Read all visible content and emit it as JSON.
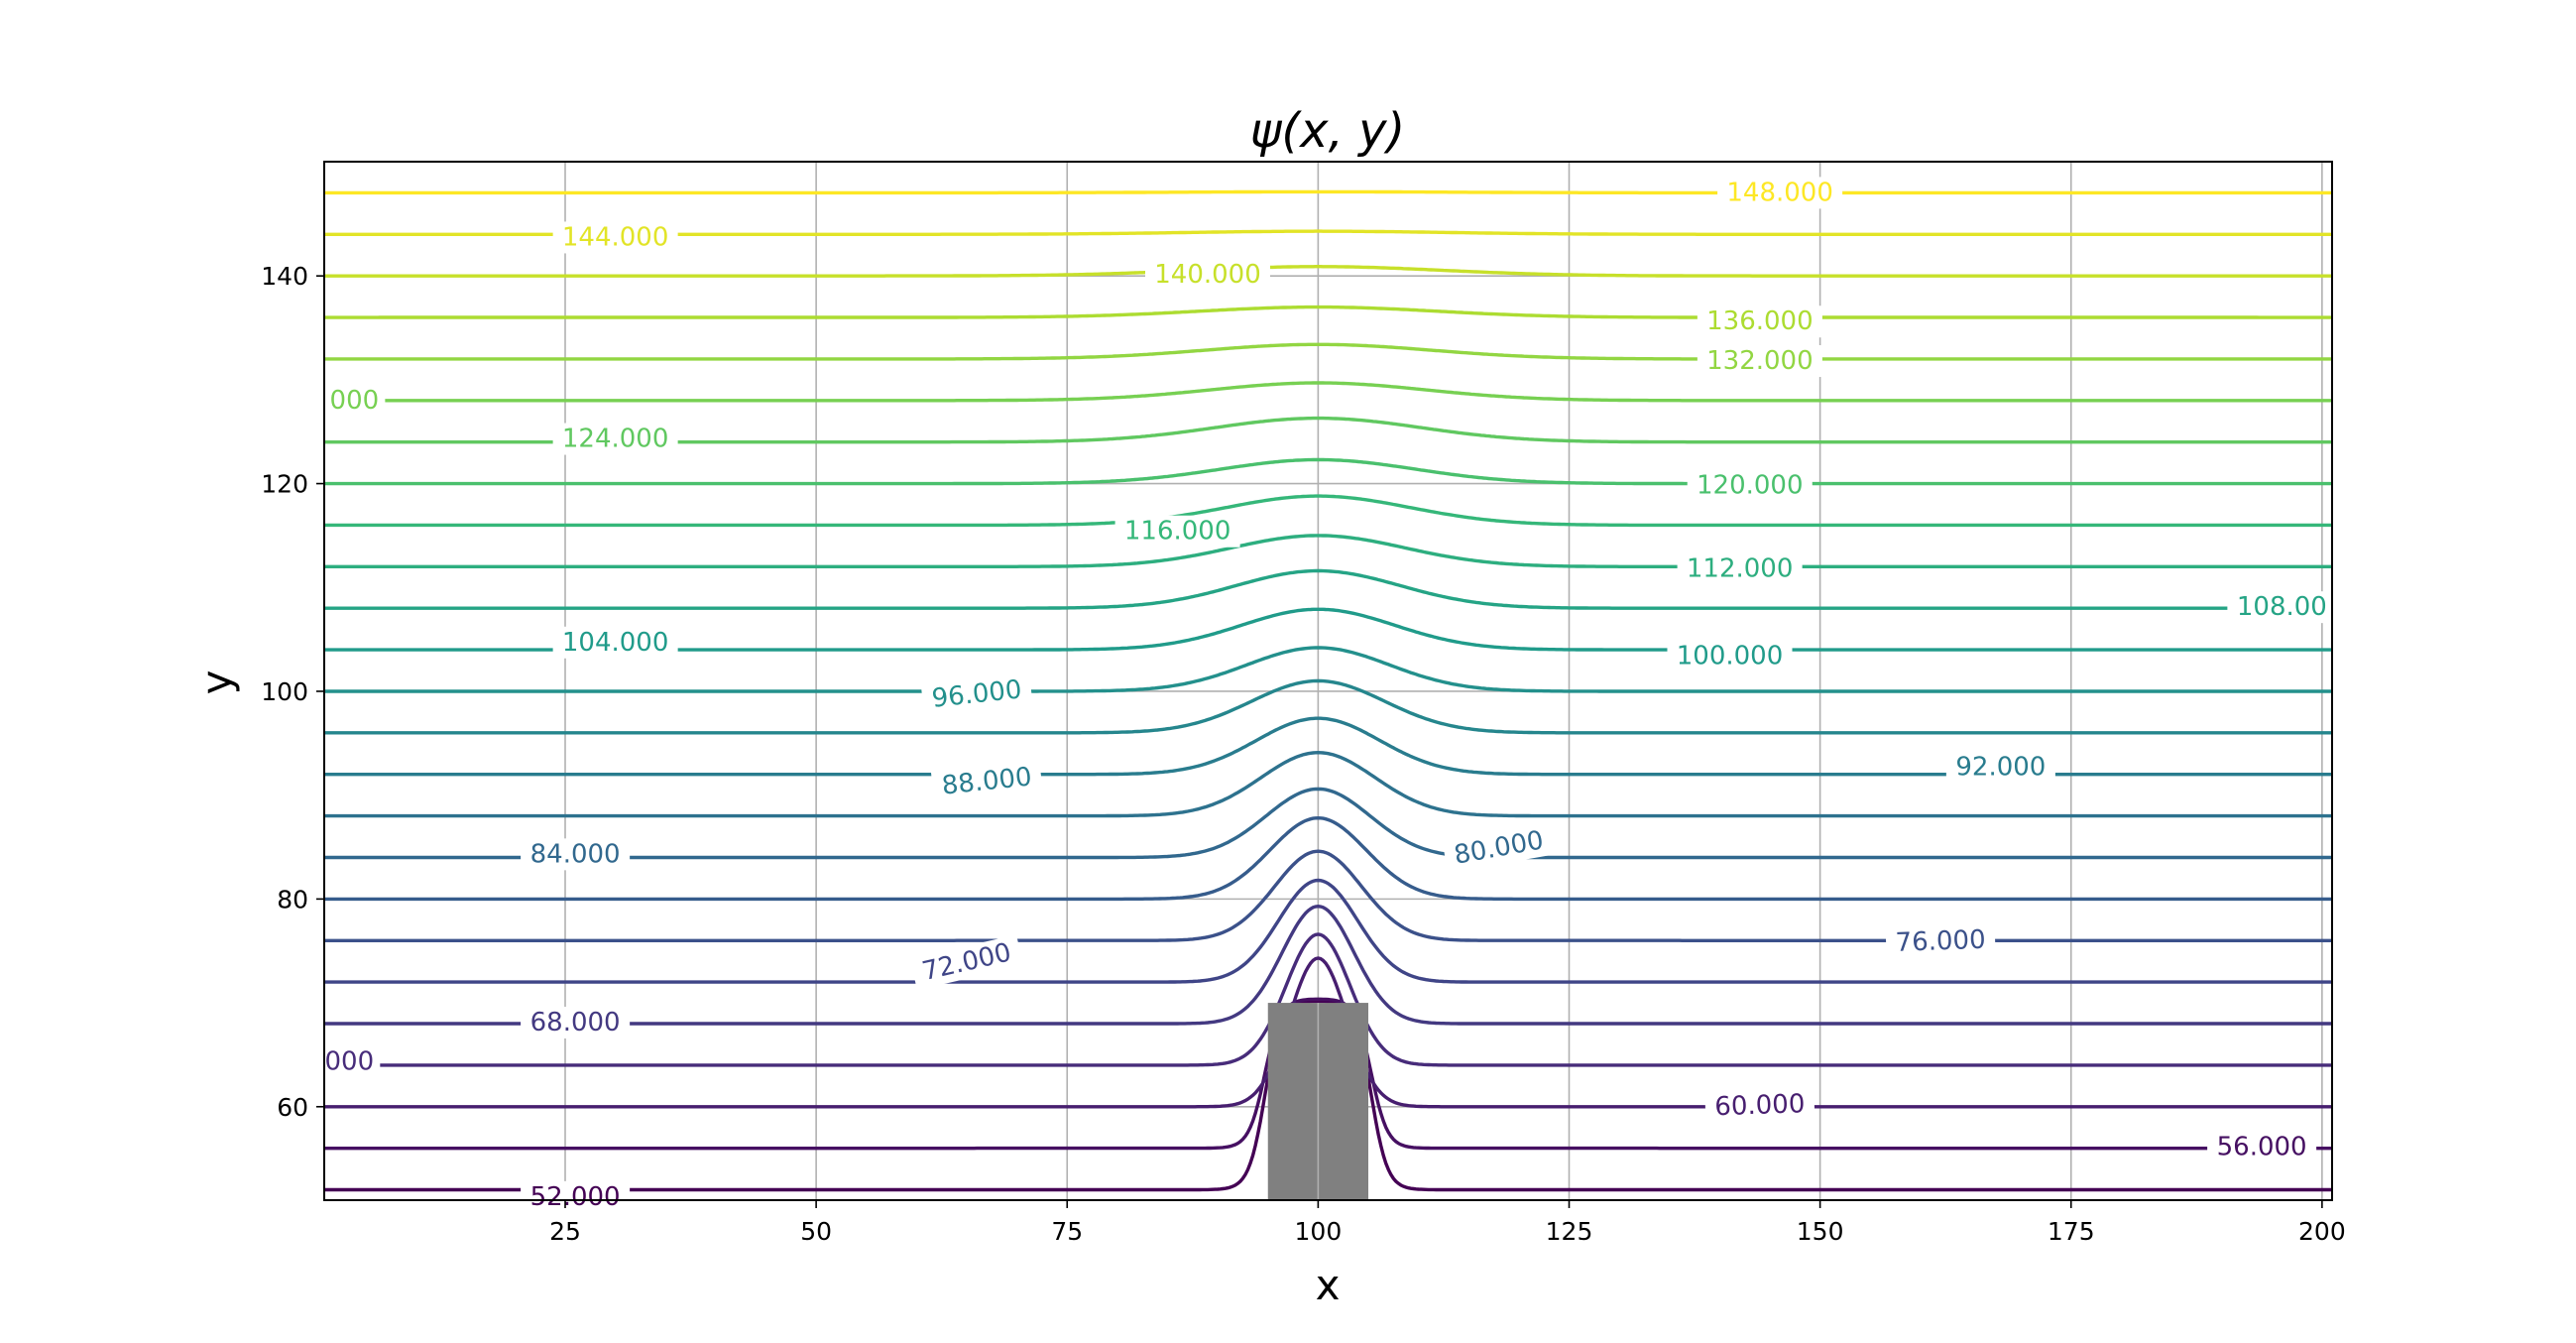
{
  "chart_data": {
    "type": "contour",
    "title": "ψ(x, y)",
    "xlabel": "x",
    "ylabel": "y",
    "xlim": [
      1,
      201
    ],
    "ylim": [
      51,
      151
    ],
    "x_ticks": [
      25,
      50,
      75,
      100,
      125,
      150,
      175,
      200
    ],
    "y_ticks": [
      60,
      80,
      100,
      120,
      140
    ],
    "grid": true,
    "colormap": "viridis",
    "obstacle": {
      "x_min": 95,
      "x_max": 105,
      "y_max": 70,
      "color": "#808080"
    },
    "levels": [
      52,
      56,
      60,
      64,
      68,
      72,
      76,
      80,
      84,
      88,
      92,
      96,
      100,
      104,
      108,
      112,
      116,
      120,
      124,
      128,
      132,
      136,
      140,
      144,
      148
    ],
    "inlet_y": [
      52,
      56,
      60,
      64,
      68,
      72,
      76,
      80,
      84,
      88,
      92,
      96,
      100,
      104,
      108,
      112,
      116,
      120,
      124,
      128,
      132,
      136,
      140,
      144,
      148
    ],
    "peak_y": [
      70.2,
      70.4,
      74.3,
      76.6,
      79.3,
      81.8,
      84.6,
      87.8,
      90.6,
      94.1,
      97.4,
      101.0,
      104.2,
      107.9,
      111.6,
      115.0,
      118.8,
      122.3,
      126.3,
      129.7,
      133.4,
      137.0,
      140.9,
      144.3,
      148.1
    ],
    "contour_labels": [
      {
        "text": "52.000",
        "x": 26,
        "y": 51.3,
        "angle": 0
      },
      {
        "text": "56.000",
        "x": 194,
        "y": 56.1,
        "angle": 0
      },
      {
        "text": "60.000",
        "x": 144,
        "y": 60.1,
        "angle": -2
      },
      {
        "text": "000",
        "x": 3.5,
        "y": 64.3,
        "angle": 0
      },
      {
        "text": "68.000",
        "x": 26,
        "y": 68.1,
        "angle": 0
      },
      {
        "text": "72.000",
        "x": 65,
        "y": 73.9,
        "angle": -13
      },
      {
        "text": "76.000",
        "x": 162,
        "y": 75.9,
        "angle": -2
      },
      {
        "text": "80.000",
        "x": 118,
        "y": 84.9,
        "angle": -10
      },
      {
        "text": "84.000",
        "x": 26,
        "y": 84.3,
        "angle": 0
      },
      {
        "text": "88.000",
        "x": 67,
        "y": 91.3,
        "angle": -6
      },
      {
        "text": "92.000",
        "x": 168,
        "y": 92.7,
        "angle": 0
      },
      {
        "text": "96.000",
        "x": 66,
        "y": 99.7,
        "angle": -6
      },
      {
        "text": "100.000",
        "x": 141,
        "y": 103.4,
        "angle": 0
      },
      {
        "text": "104.000",
        "x": 30,
        "y": 104.7,
        "angle": 0
      },
      {
        "text": "108.00",
        "x": 196,
        "y": 108.1,
        "angle": 0
      },
      {
        "text": "112.000",
        "x": 142,
        "y": 111.8,
        "angle": 0
      },
      {
        "text": "116.000",
        "x": 86,
        "y": 115.4,
        "angle": 0
      },
      {
        "text": "120.000",
        "x": 143,
        "y": 119.8,
        "angle": 0
      },
      {
        "text": "124.000",
        "x": 30,
        "y": 124.3,
        "angle": 0
      },
      {
        "text": "000",
        "x": 4,
        "y": 128.0,
        "angle": 0
      },
      {
        "text": "132.000",
        "x": 144,
        "y": 131.8,
        "angle": 0
      },
      {
        "text": "136.000",
        "x": 144,
        "y": 135.6,
        "angle": 0
      },
      {
        "text": "140.000",
        "x": 89,
        "y": 140.1,
        "angle": 0
      },
      {
        "text": "144.000",
        "x": 30,
        "y": 143.7,
        "angle": 0
      },
      {
        "text": "148.000",
        "x": 146,
        "y": 148.0,
        "angle": 0
      }
    ]
  }
}
